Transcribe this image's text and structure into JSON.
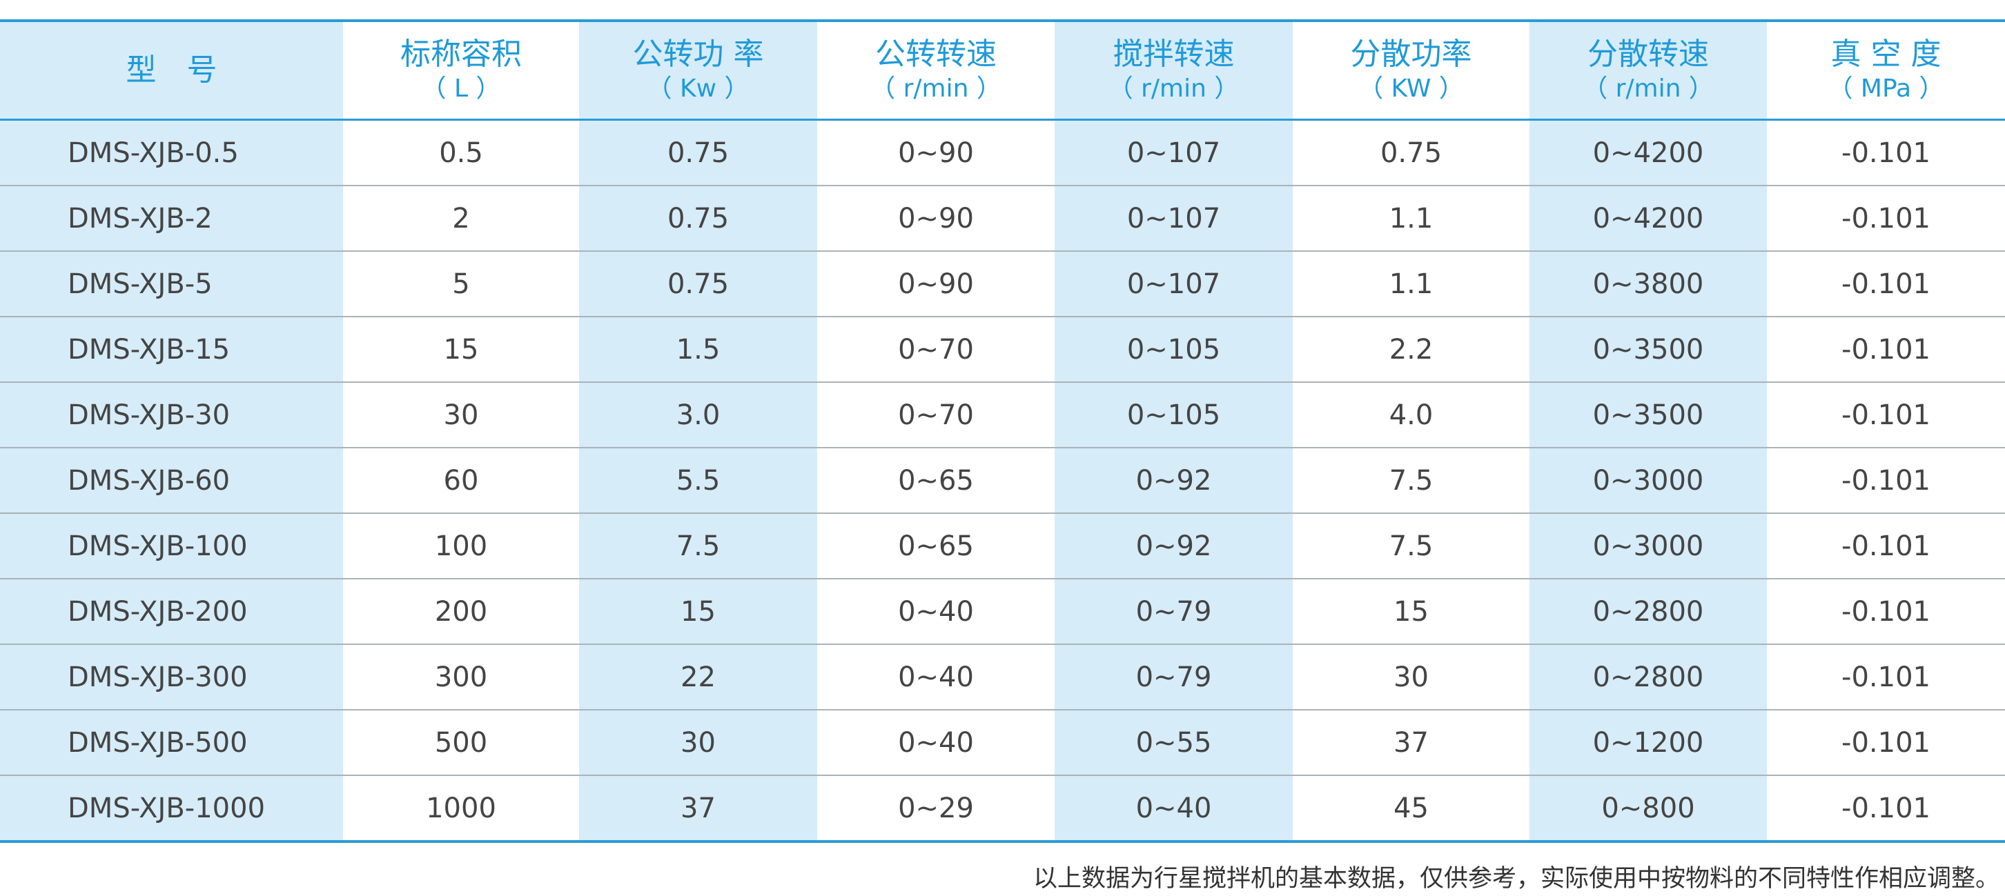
{
  "table": {
    "header": [
      {
        "name": "型　号"
      },
      {
        "name": "标称容积",
        "unit": "（ L ）"
      },
      {
        "name": "公转功 率",
        "unit": "（ Kw ）"
      },
      {
        "name": "公转转速",
        "unit": "（ r/min ）"
      },
      {
        "name": "搅拌转速",
        "unit": "（ r/min ）"
      },
      {
        "name": "分散功率",
        "unit": "（ KW ）"
      },
      {
        "name": "分散转速",
        "unit": "（ r/min ）"
      },
      {
        "name": "真 空 度",
        "unit": "（ MPa ）"
      }
    ],
    "rows": [
      [
        "DMS-XJB-0.5",
        "0.5",
        "0.75",
        "0~90",
        "0~107",
        "0.75",
        "0~4200",
        "-0.101"
      ],
      [
        "DMS-XJB-2",
        "2",
        "0.75",
        "0~90",
        "0~107",
        "1.1",
        "0~4200",
        "-0.101"
      ],
      [
        "DMS-XJB-5",
        "5",
        "0.75",
        "0~90",
        "0~107",
        "1.1",
        "0~3800",
        "-0.101"
      ],
      [
        "DMS-XJB-15",
        "15",
        "1.5",
        "0~70",
        "0~105",
        "2.2",
        "0~3500",
        "-0.101"
      ],
      [
        "DMS-XJB-30",
        "30",
        "3.0",
        "0~70",
        "0~105",
        "4.0",
        "0~3500",
        "-0.101"
      ],
      [
        "DMS-XJB-60",
        "60",
        "5.5",
        "0~65",
        "0~92",
        "7.5",
        "0~3000",
        "-0.101"
      ],
      [
        "DMS-XJB-100",
        "100",
        "7.5",
        "0~65",
        "0~92",
        "7.5",
        "0~3000",
        "-0.101"
      ],
      [
        "DMS-XJB-200",
        "200",
        "15",
        "0~40",
        "0~79",
        "15",
        "0~2800",
        "-0.101"
      ],
      [
        "DMS-XJB-300",
        "300",
        "22",
        "0~40",
        "0~79",
        "30",
        "0~2800",
        "-0.101"
      ],
      [
        "DMS-XJB-500",
        "500",
        "30",
        "0~40",
        "0~55",
        "37",
        "0~1200",
        "-0.101"
      ],
      [
        "DMS-XJB-1000",
        "1000",
        "37",
        "0~29",
        "0~40",
        "45",
        "0~800",
        "-0.101"
      ]
    ]
  },
  "footnote": "以上数据为行星搅拌机的基本数据，仅供参考，实际使用中按物料的不同特性作相应调整。"
}
